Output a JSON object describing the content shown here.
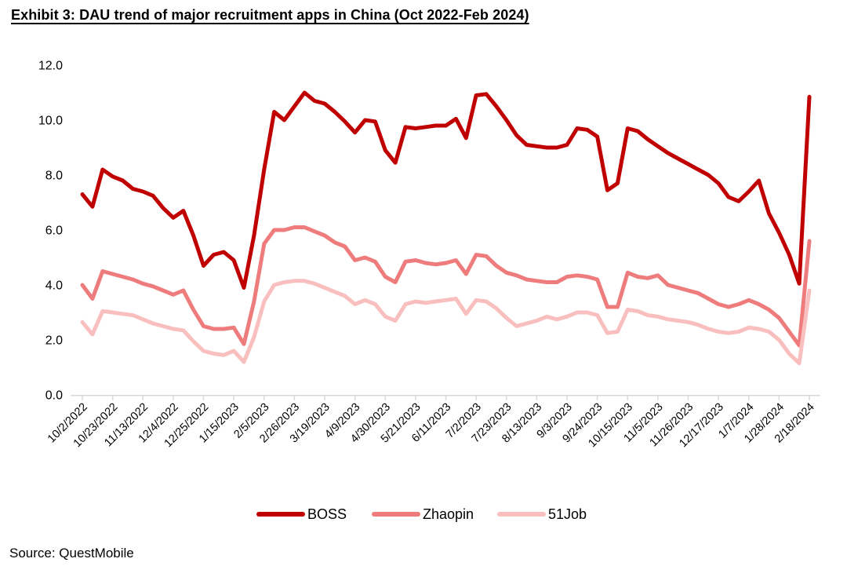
{
  "page": {
    "title": "Exhibit 3: DAU trend of major recruitment apps in China (Oct 2022-Feb 2024)",
    "source": "Source: QuestMobile"
  },
  "chart_data": {
    "type": "line",
    "title": "Exhibit 3: DAU trend of major recruitment apps in China (Oct 2022-Feb 2024)",
    "x_frequency": "weekly",
    "x_points": 73,
    "x_label_every_n_points": 3,
    "x_tick_labels": [
      "10/2/2022",
      "10/23/2022",
      "11/13/2022",
      "12/4/2022",
      "12/25/2022",
      "1/15/2023",
      "2/5/2023",
      "2/26/2023",
      "3/19/2023",
      "4/9/2023",
      "4/30/2023",
      "5/21/2023",
      "6/11/2023",
      "7/2/2023",
      "7/23/2023",
      "8/13/2023",
      "9/3/2023",
      "9/24/2023",
      "10/15/2023",
      "11/5/2023",
      "11/26/2023",
      "12/17/2023",
      "1/7/2024",
      "1/28/2024",
      "2/18/2024"
    ],
    "ylim": [
      0,
      12
    ],
    "y_ticks": [
      0,
      2,
      4,
      6,
      8,
      10,
      12
    ],
    "y_tick_labels": [
      "0.0",
      "2.0",
      "4.0",
      "6.0",
      "8.0",
      "10.0",
      "12.0"
    ],
    "grid": false,
    "axis_color": "#d9d9d9",
    "legend_position": "bottom",
    "series": [
      {
        "name": "BOSS",
        "color": "#c00000",
        "values": [
          7.3,
          6.85,
          8.2,
          7.95,
          7.8,
          7.5,
          7.4,
          7.25,
          6.8,
          6.45,
          6.7,
          5.8,
          4.7,
          5.1,
          5.2,
          4.9,
          3.9,
          5.8,
          8.2,
          10.3,
          10.0,
          10.5,
          11.0,
          10.7,
          10.6,
          10.3,
          9.95,
          9.55,
          10.0,
          9.95,
          8.9,
          8.45,
          9.75,
          9.7,
          9.75,
          9.8,
          9.8,
          10.05,
          9.35,
          10.9,
          10.95,
          10.5,
          10.0,
          9.45,
          9.1,
          9.05,
          9.0,
          9.0,
          9.1,
          9.7,
          9.65,
          9.4,
          7.45,
          7.7,
          9.7,
          9.6,
          9.3,
          9.05,
          8.8,
          8.6,
          8.4,
          8.2,
          8.0,
          7.7,
          7.2,
          7.05,
          7.4,
          7.8,
          6.6,
          5.9,
          5.1,
          4.05,
          10.85
        ]
      },
      {
        "name": "Zhaopin",
        "color": "#ee7c7c",
        "values": [
          4.0,
          3.5,
          4.5,
          4.4,
          4.3,
          4.2,
          4.05,
          3.95,
          3.8,
          3.65,
          3.8,
          3.1,
          2.5,
          2.4,
          2.4,
          2.45,
          1.85,
          3.4,
          5.5,
          6.0,
          6.0,
          6.1,
          6.1,
          5.95,
          5.8,
          5.55,
          5.4,
          4.9,
          5.0,
          4.85,
          4.3,
          4.1,
          4.85,
          4.9,
          4.8,
          4.75,
          4.8,
          4.9,
          4.4,
          5.1,
          5.05,
          4.7,
          4.45,
          4.35,
          4.2,
          4.15,
          4.1,
          4.1,
          4.3,
          4.35,
          4.3,
          4.2,
          3.2,
          3.2,
          4.45,
          4.3,
          4.25,
          4.35,
          4.0,
          3.9,
          3.8,
          3.7,
          3.5,
          3.3,
          3.2,
          3.3,
          3.45,
          3.3,
          3.1,
          2.8,
          2.3,
          1.8,
          5.6
        ]
      },
      {
        "name": "51Job",
        "color": "#f9bfbf",
        "values": [
          2.65,
          2.2,
          3.05,
          3.0,
          2.95,
          2.9,
          2.75,
          2.6,
          2.5,
          2.4,
          2.35,
          1.95,
          1.6,
          1.5,
          1.45,
          1.6,
          1.2,
          2.1,
          3.4,
          4.0,
          4.1,
          4.15,
          4.15,
          4.05,
          3.9,
          3.75,
          3.6,
          3.3,
          3.45,
          3.3,
          2.85,
          2.7,
          3.3,
          3.4,
          3.35,
          3.4,
          3.45,
          3.5,
          2.95,
          3.45,
          3.4,
          3.15,
          2.8,
          2.5,
          2.6,
          2.7,
          2.85,
          2.75,
          2.85,
          3.0,
          3.0,
          2.9,
          2.25,
          2.3,
          3.1,
          3.05,
          2.9,
          2.85,
          2.75,
          2.7,
          2.65,
          2.55,
          2.4,
          2.3,
          2.25,
          2.3,
          2.45,
          2.4,
          2.3,
          2.0,
          1.5,
          1.15,
          3.8
        ]
      }
    ]
  }
}
